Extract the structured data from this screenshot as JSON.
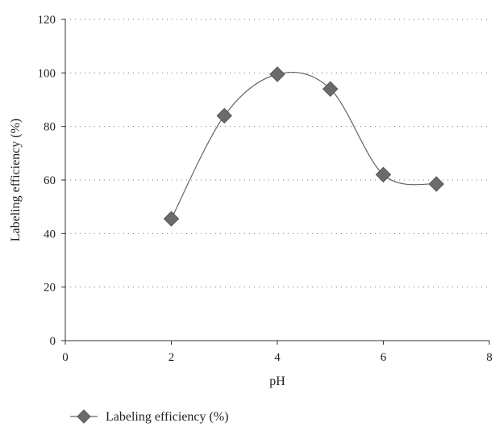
{
  "chart_data": {
    "type": "scatter",
    "title": "",
    "xlabel": "pH",
    "ylabel": "Labeling efficiency (%)",
    "xlim": [
      0,
      8
    ],
    "ylim": [
      0,
      120
    ],
    "xticks": [
      "0",
      "2",
      "4",
      "6",
      "8"
    ],
    "yticks": [
      "0",
      "20",
      "40",
      "60",
      "80",
      "100",
      "120"
    ],
    "grid": "horizontal dotted",
    "legend_position": "bottom-left",
    "line_style": "smoothed",
    "series": [
      {
        "name": "Labeling efficiency (%)",
        "color": "#6b6b6b",
        "marker": "diamond",
        "x": [
          2,
          3,
          4,
          5,
          6,
          7
        ],
        "y": [
          45.5,
          84,
          99.5,
          94,
          62,
          58.5
        ]
      }
    ]
  }
}
